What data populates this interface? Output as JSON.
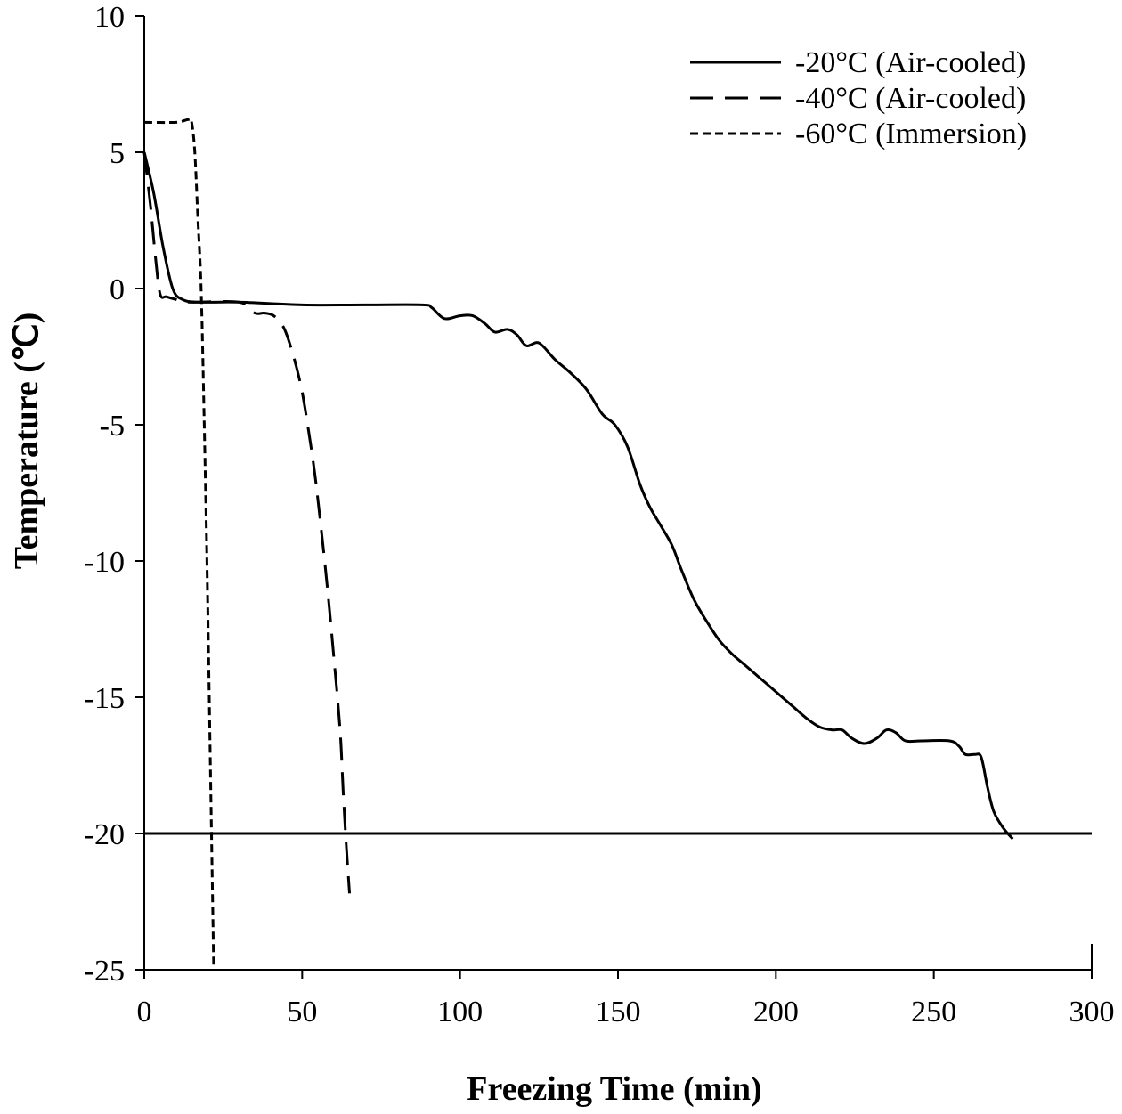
{
  "chart_data": {
    "type": "line",
    "xlabel": "Freezing Time (min)",
    "ylabel": "Temperature (℃)",
    "xlim": [
      0,
      300
    ],
    "ylim": [
      -25,
      10
    ],
    "xticks": [
      0,
      50,
      100,
      150,
      200,
      250,
      300
    ],
    "yticks": [
      10,
      5,
      0,
      -5,
      -10,
      -15,
      -20,
      -25
    ],
    "grid": false,
    "legend_position": "top-right",
    "reference_line": {
      "y": -20
    },
    "series": [
      {
        "name": "-20°C (Air-cooled)",
        "style": "solid",
        "points": [
          [
            0,
            5
          ],
          [
            3,
            3.5
          ],
          [
            6,
            1.5
          ],
          [
            9,
            0
          ],
          [
            12,
            -0.4
          ],
          [
            17,
            -0.5
          ],
          [
            30,
            -0.5
          ],
          [
            50,
            -0.6
          ],
          [
            70,
            -0.6
          ],
          [
            88,
            -0.6
          ],
          [
            91,
            -0.7
          ],
          [
            95,
            -1.1
          ],
          [
            100,
            -1.0
          ],
          [
            104,
            -1.0
          ],
          [
            108,
            -1.3
          ],
          [
            111,
            -1.6
          ],
          [
            115,
            -1.5
          ],
          [
            118,
            -1.7
          ],
          [
            121,
            -2.1
          ],
          [
            125,
            -2.0
          ],
          [
            130,
            -2.6
          ],
          [
            135,
            -3.1
          ],
          [
            140,
            -3.7
          ],
          [
            145,
            -4.6
          ],
          [
            149,
            -5.0
          ],
          [
            153,
            -5.8
          ],
          [
            157,
            -7.2
          ],
          [
            160,
            -8.0
          ],
          [
            163,
            -8.6
          ],
          [
            167,
            -9.4
          ],
          [
            170,
            -10.3
          ],
          [
            174,
            -11.4
          ],
          [
            178,
            -12.2
          ],
          [
            182,
            -12.9
          ],
          [
            186,
            -13.4
          ],
          [
            190,
            -13.8
          ],
          [
            195,
            -14.3
          ],
          [
            200,
            -14.8
          ],
          [
            205,
            -15.3
          ],
          [
            210,
            -15.8
          ],
          [
            214,
            -16.1
          ],
          [
            218,
            -16.2
          ],
          [
            221,
            -16.2
          ],
          [
            224,
            -16.5
          ],
          [
            228,
            -16.7
          ],
          [
            232,
            -16.5
          ],
          [
            235,
            -16.2
          ],
          [
            238,
            -16.3
          ],
          [
            241,
            -16.6
          ],
          [
            246,
            -16.6
          ],
          [
            255,
            -16.6
          ],
          [
            258,
            -16.8
          ],
          [
            260,
            -17.1
          ],
          [
            263,
            -17.1
          ],
          [
            265,
            -17.2
          ],
          [
            267,
            -18.3
          ],
          [
            269,
            -19.2
          ],
          [
            272,
            -19.8
          ],
          [
            275,
            -20.2
          ]
        ]
      },
      {
        "name": "-40°C (Air-cooled)",
        "style": "dashed",
        "points": [
          [
            0,
            5
          ],
          [
            2,
            3
          ],
          [
            3.5,
            1.2
          ],
          [
            5,
            -0.2
          ],
          [
            7,
            -0.3
          ],
          [
            10,
            -0.4
          ],
          [
            14,
            -0.5
          ],
          [
            30,
            -0.5
          ],
          [
            35,
            -0.9
          ],
          [
            38,
            -0.9
          ],
          [
            41,
            -1.0
          ],
          [
            44,
            -1.4
          ],
          [
            46,
            -2.0
          ],
          [
            48,
            -2.8
          ],
          [
            50,
            -3.8
          ],
          [
            52,
            -5.2
          ],
          [
            54,
            -6.8
          ],
          [
            56,
            -8.8
          ],
          [
            58,
            -11.0
          ],
          [
            60,
            -13.5
          ],
          [
            62,
            -16.2
          ],
          [
            63,
            -18.5
          ],
          [
            64,
            -20.5
          ],
          [
            65,
            -22.2
          ]
        ]
      },
      {
        "name": "-60°C (Immersion)",
        "style": "dotted",
        "points": [
          [
            0,
            6.1
          ],
          [
            10,
            6.1
          ],
          [
            14,
            6.2
          ],
          [
            15,
            6.1
          ],
          [
            16,
            5
          ],
          [
            17,
            2.5
          ],
          [
            18,
            0
          ],
          [
            19,
            -5
          ],
          [
            20,
            -11
          ],
          [
            21,
            -18
          ],
          [
            22,
            -25
          ]
        ]
      }
    ]
  }
}
